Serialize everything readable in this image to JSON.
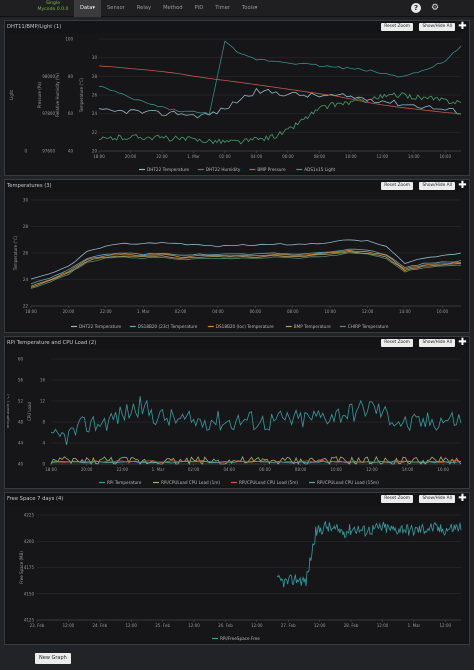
{
  "app": {
    "brand_line1": "Single",
    "brand_line2": "Mycodo 0.0.0"
  },
  "nav": {
    "items": [
      {
        "label": "Data",
        "active": true
      },
      {
        "label": "Sensor"
      },
      {
        "label": "Relay"
      },
      {
        "label": "Method"
      },
      {
        "label": "PID"
      },
      {
        "label": "Timer"
      },
      {
        "label": "Tools"
      }
    ],
    "help_icon": "question-icon",
    "settings_icon": "gear-icon"
  },
  "buttons": {
    "reset_zoom": "Reset Zoom",
    "show_hide_all": "Show/Hide All",
    "new_graph": "New Graph"
  },
  "panels": [
    {
      "title": "DHT11/BMP/Light (1)",
      "chart_data": {
        "type": "line",
        "x_ticks": [
          "18:00",
          "20:00",
          "22:00",
          "1. Mar",
          "02:00",
          "04:00",
          "06:00",
          "08:00",
          "10:00",
          "12:00",
          "14:00",
          "16:00"
        ],
        "y_axes": [
          {
            "label": "Light",
            "ticks": [
              "0",
              "",
              "",
              "",
              "",
              "",
              ""
            ]
          },
          {
            "label": "Pressure (Pa)",
            "ticks": [
              "97600",
              "",
              "97800",
              "",
              "98000",
              "",
              ""
            ]
          },
          {
            "label": "Relative Humidity (%)",
            "ticks": [
              "40",
              "",
              "60",
              "",
              "80",
              "",
              "100"
            ]
          },
          {
            "label": "Temperature (°C)",
            "ticks": [
              "20",
              "22",
              "24",
              "26",
              "28",
              "30",
              ""
            ]
          }
        ],
        "series": [
          {
            "name": "DHT22 Temperature",
            "color": "#8fb7c8",
            "values": [
              24.3,
              24.2,
              24.3,
              24.1,
              24.0,
              24.1,
              23.8,
              23.9,
              24.5,
              25.6,
              26.4,
              26.3,
              26.1,
              26.0,
              25.9,
              25.9,
              25.8,
              25.6,
              25.4,
              25.1,
              24.9,
              24.7,
              24.4,
              24.2
            ]
          },
          {
            "name": "DHT22 Humidity",
            "color": "#3a8b84",
            "values": [
              72,
              68,
              64,
              61,
              58,
              56,
              55,
              54,
              100,
              92,
              89,
              88,
              87,
              86,
              85,
              84,
              83,
              82,
              80,
              78,
              80,
              83,
              88,
              97
            ]
          },
          {
            "name": "BMP Pressure",
            "color": "#c05a4a",
            "values": [
              97980,
              97975,
              97968,
              97962,
              97955,
              97946,
              97934,
              97924,
              97915,
              97906,
              97896,
              97886,
              97876,
              97866,
              97856,
              97846,
              97832,
              97818,
              97806,
              97796,
              97788,
              97780,
              97772,
              97766
            ]
          },
          {
            "name": "ADS1x15 Light",
            "color": "#4a9a6a",
            "values": [
              12,
              14,
              15,
              15,
              14,
              13,
              12,
              11,
              10,
              10,
              12,
              15,
              22,
              34,
              45,
              50,
              52,
              55,
              58,
              60,
              58,
              56,
              54,
              52
            ]
          }
        ],
        "legend_position": "bottom"
      }
    },
    {
      "title": "Temperatures (3)",
      "chart_data": {
        "type": "line",
        "x_ticks": [
          "18:00",
          "20:00",
          "22:00",
          "1. Mar",
          "02:00",
          "04:00",
          "06:00",
          "08:00",
          "10:00",
          "12:00",
          "14:00",
          "16:00"
        ],
        "y_label": "Temperature (°C)",
        "y_ticks": [
          "22",
          "24",
          "26",
          "28",
          "30"
        ],
        "ylim": [
          22,
          30
        ],
        "series": [
          {
            "name": "DHT22 Temperature",
            "color": "#8fb7c8",
            "values": [
              24.0,
              24.4,
              25.0,
              26.1,
              26.5,
              26.7,
              26.7,
              26.8,
              26.7,
              26.6,
              26.5,
              26.6,
              26.6,
              26.7,
              26.6,
              26.7,
              26.8,
              27.0,
              26.9,
              26.5,
              25.2,
              25.6,
              25.8,
              26.0
            ]
          },
          {
            "name": "DS18B20 (23c) Temperature",
            "color": "#6aa0b8",
            "values": [
              23.7,
              24.1,
              24.7,
              25.6,
              25.9,
              26.0,
              25.9,
              26.0,
              25.8,
              25.9,
              25.9,
              25.9,
              25.9,
              26.0,
              25.9,
              26.0,
              26.1,
              26.3,
              26.2,
              25.9,
              24.9,
              25.2,
              25.3,
              25.4
            ]
          },
          {
            "name": "DS18B20 (loc) Temperature",
            "color": "#c8863a",
            "values": [
              23.5,
              24.0,
              24.6,
              25.5,
              25.8,
              25.9,
              25.8,
              25.9,
              25.7,
              25.8,
              25.8,
              25.8,
              25.8,
              25.9,
              25.8,
              25.9,
              26.0,
              26.2,
              26.1,
              25.8,
              24.8,
              25.1,
              25.2,
              25.3
            ]
          },
          {
            "name": "BMP Temperature",
            "color": "#b0a060",
            "values": [
              23.4,
              23.9,
              24.5,
              25.4,
              25.7,
              25.8,
              25.7,
              25.8,
              25.6,
              25.7,
              25.7,
              25.7,
              25.7,
              25.8,
              25.7,
              25.8,
              25.9,
              26.1,
              26.0,
              25.7,
              24.7,
              25.0,
              25.1,
              25.2
            ]
          },
          {
            "name": "CHIRP Temperature",
            "color": "#5a8a70",
            "values": [
              23.3,
              23.8,
              24.4,
              25.3,
              25.6,
              25.7,
              25.6,
              25.7,
              25.5,
              25.6,
              25.6,
              25.6,
              25.6,
              25.7,
              25.6,
              25.7,
              25.8,
              26.0,
              25.9,
              25.6,
              24.6,
              24.9,
              25.0,
              25.1
            ]
          }
        ],
        "legend_position": "bottom"
      }
    },
    {
      "title": "RPi Temperature and CPU Load (2)",
      "chart_data": {
        "type": "line",
        "x_ticks": [
          "18:00",
          "20:00",
          "22:00",
          "1. Mar",
          "02:00",
          "04:00",
          "06:00",
          "08:00",
          "10:00",
          "12:00",
          "14:00",
          "16:00"
        ],
        "y_axes": [
          {
            "label": "Temperature (°C)",
            "ticks": [
              "40",
              "44",
              "48",
              "52",
              "56",
              "60"
            ]
          },
          {
            "label": "CPU Load",
            "ticks": [
              "0",
              "4",
              "8",
              "12",
              "16",
              ""
            ]
          }
        ],
        "series": [
          {
            "name": "RPi Temperature",
            "color": "#3a9aa0",
            "values": [
              44.5,
              45.5,
              47.5,
              48.0,
              49.5,
              51.0,
              49.0,
              48.5,
              48.0,
              48.5,
              48.0,
              48.5,
              48.0,
              48.5,
              48.5,
              49.0,
              49.5,
              50.0,
              51.0,
              49.0,
              47.5,
              48.0,
              48.5,
              48.5
            ]
          },
          {
            "name": "RPi/CPULoad CPU Load (1m)",
            "color": "#a8b060",
            "values": [
              0.5,
              0.6,
              0.5,
              0.7,
              0.6,
              0.5,
              0.6,
              0.5,
              0.7,
              0.6,
              0.5,
              0.6,
              0.5,
              0.6,
              0.5,
              0.7,
              0.6,
              0.5,
              0.6,
              0.5,
              0.6,
              0.5,
              0.6,
              0.7
            ]
          },
          {
            "name": "RPi/CPULoad CPU Load (5m)",
            "color": "#c86040",
            "values": [
              0.4,
              0.5,
              0.4,
              0.5,
              0.5,
              0.4,
              0.5,
              0.4,
              0.5,
              0.5,
              0.4,
              0.5,
              0.4,
              0.5,
              0.4,
              0.5,
              0.5,
              0.4,
              0.5,
              0.4,
              0.5,
              0.4,
              0.5,
              0.5
            ]
          },
          {
            "name": "RPi/CPULoad CPU Load (15m)",
            "color": "#5aa0a8",
            "values": [
              0.3,
              0.4,
              0.3,
              0.4,
              0.4,
              0.3,
              0.4,
              0.3,
              0.4,
              0.4,
              0.3,
              0.4,
              0.3,
              0.4,
              0.3,
              0.4,
              0.4,
              0.3,
              0.4,
              0.3,
              0.4,
              0.3,
              0.4,
              0.4
            ]
          }
        ],
        "legend_position": "bottom"
      }
    },
    {
      "title": "Free Space 7 days (4)",
      "chart_data": {
        "type": "line",
        "x_ticks": [
          "23. Feb",
          "12:00",
          "24. Feb",
          "12:00",
          "25. Feb",
          "12:00",
          "26. Feb",
          "12:00",
          "27. Feb",
          "12:00",
          "28. Feb",
          "12:00",
          "1. Mar",
          "12:00"
        ],
        "y_label": "Free Space (MB)",
        "y_ticks": [
          "4125",
          "4150",
          "4175",
          "4200",
          "4225"
        ],
        "ylim": [
          4115,
          4235
        ],
        "series": [
          {
            "name": "RPi/FreeSpace Free",
            "color": "#3a9aa0",
            "values": [
              4160,
              4158,
              4162,
              4159,
              4215,
              4222,
              4218,
              4216,
              4220,
              4217,
              4219,
              4221,
              4218,
              4220,
              4217,
              4219,
              4221,
              4218,
              4220,
              4222
            ]
          }
        ],
        "x_start_tick": 8,
        "legend_position": "bottom"
      }
    }
  ]
}
